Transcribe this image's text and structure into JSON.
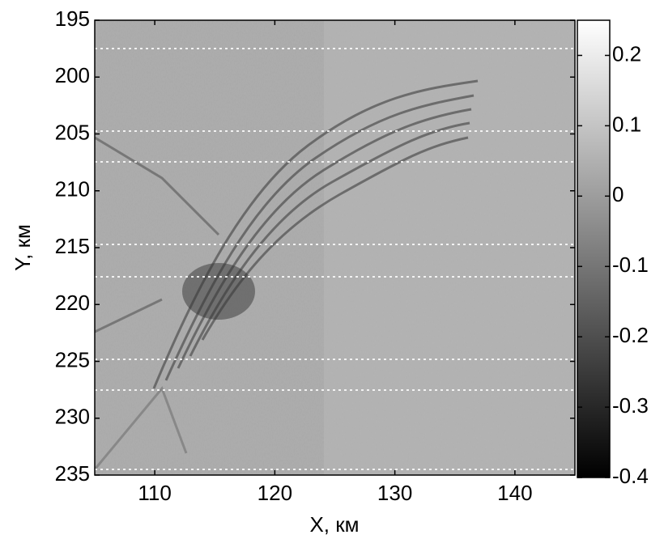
{
  "chart_data": {
    "type": "image",
    "xlabel": "X, км",
    "ylabel": "Y, км",
    "xlim": [
      105,
      145
    ],
    "xticks": [
      110,
      120,
      130,
      140
    ],
    "ylim": [
      235,
      195
    ],
    "yticks": [
      195,
      200,
      205,
      210,
      215,
      220,
      225,
      230,
      235
    ],
    "colorbar": {
      "colormap": "gray",
      "clim": [
        -0.4,
        0.25
      ],
      "ticks": [
        -0.4,
        -0.3,
        -0.2,
        -0.1,
        0,
        0.1,
        0.2
      ]
    }
  }
}
